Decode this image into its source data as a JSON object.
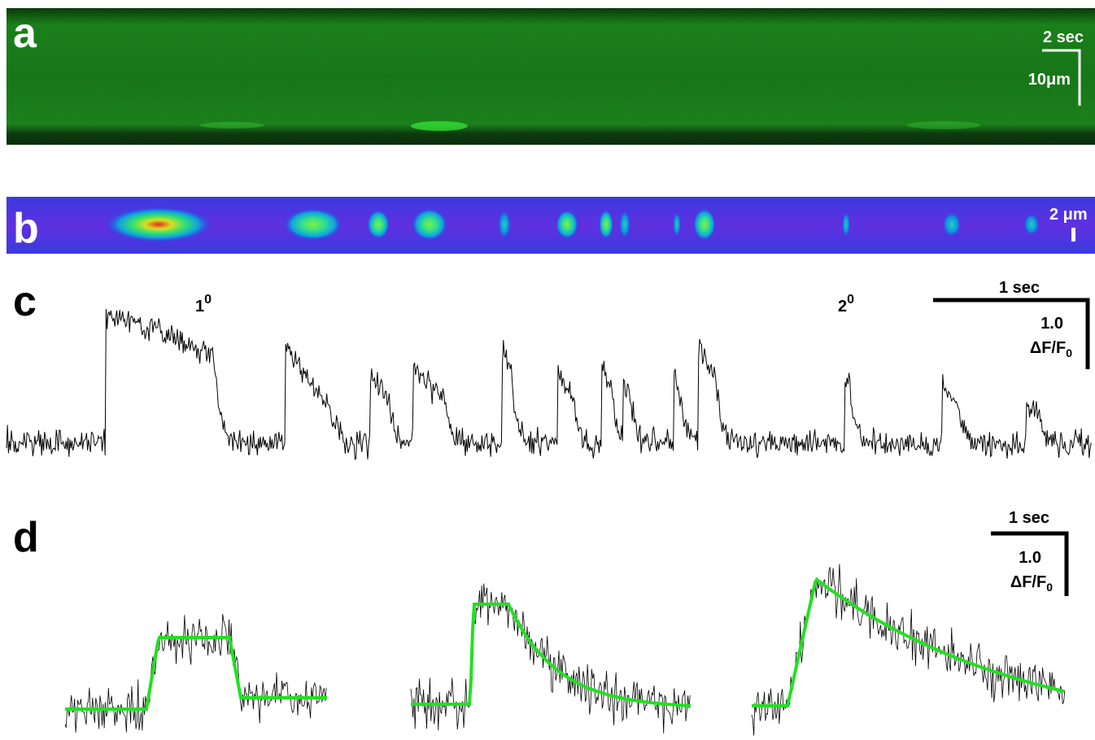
{
  "panels": [
    {
      "label": "a",
      "scale_bar": {
        "time": "2 sec",
        "length": "10μm"
      }
    },
    {
      "label": "b",
      "scale_bar": {
        "length": "2 μm"
      }
    },
    {
      "label": "c",
      "annotations": [
        {
          "main": "1",
          "sup": "0"
        },
        {
          "main": "2",
          "sup": "0"
        }
      ],
      "scale_bar": {
        "time": "1 sec",
        "amplitude": "1.0",
        "unit": "ΔF/F",
        "unit_sub": "0"
      }
    },
    {
      "label": "d",
      "scale_bar": {
        "time": "1 sec",
        "amplitude": "1.0",
        "unit": "ΔF/F",
        "unit_sub": "0"
      }
    }
  ]
}
